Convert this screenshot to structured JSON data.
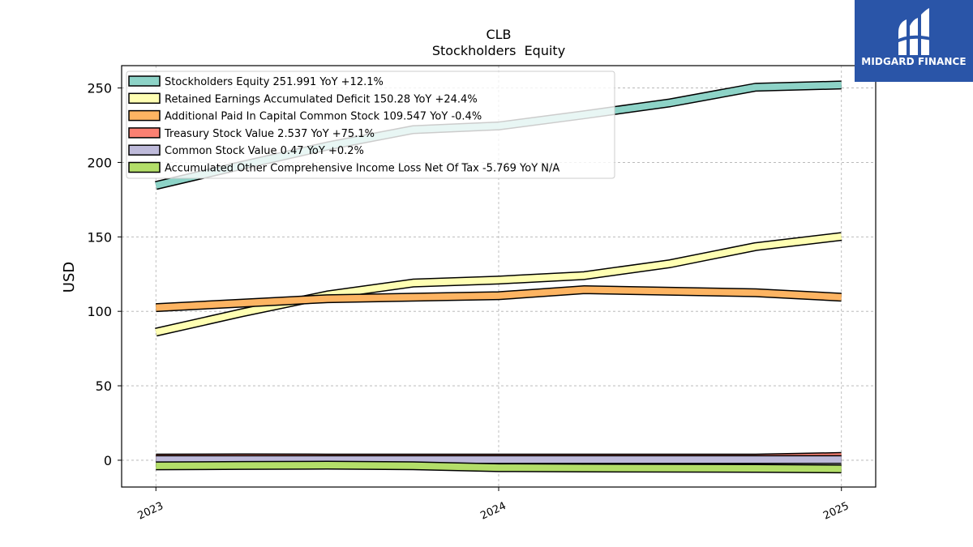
{
  "brand": {
    "name": "MIDGARD FINANCE",
    "bg_color": "#2a55a8",
    "icon": "midgard-logo-icon"
  },
  "chart_data": {
    "type": "area",
    "title": "CLB",
    "subtitle": "Stockholders  Equity",
    "ylabel": "USD",
    "xlabel": "",
    "x_ticks": [
      "2023",
      "2024",
      "2025"
    ],
    "ylim": [
      -18,
      265
    ],
    "y_ticks": [
      0,
      50,
      100,
      150,
      200,
      250
    ],
    "grid": true,
    "legend_position": "top-left",
    "x": [
      2023.0,
      2023.25,
      2023.5,
      2023.75,
      2024.0,
      2024.25,
      2024.5,
      2024.75,
      2025.0
    ],
    "series": [
      {
        "name": "Stockholders Equity  251.991 YoY +12.1%",
        "color": "#8dd3c7",
        "values": [
          184.5,
          198,
          211,
          222,
          224.5,
          232,
          240,
          250.5,
          252
        ]
      },
      {
        "name": "Retained Earnings Accumulated Deficit  150.28 YoY +24.4%",
        "color": "#ffffb3",
        "values": [
          86,
          99,
          111,
          119,
          121,
          124,
          132,
          143.5,
          150.3
        ]
      },
      {
        "name": "Additional Paid In Capital Common Stock  109.547 YoY -0.4%",
        "color": "#fdb462",
        "values": [
          102.5,
          105.5,
          108.5,
          109.5,
          110.5,
          114.5,
          113.5,
          112.5,
          109.5
        ]
      },
      {
        "name": "Treasury Stock Value  2.537 YoY +75.1%",
        "color": "#fb8072",
        "values": [
          1.5,
          1.6,
          1.5,
          1.5,
          1.5,
          1.5,
          1.5,
          1.5,
          2.5
        ]
      },
      {
        "name": "Common Stock Value  0.47 YoY +0.2%",
        "color": "#bebada",
        "values": [
          0.47,
          0.47,
          0.47,
          0.47,
          0.47,
          0.47,
          0.47,
          0.47,
          0.47
        ]
      },
      {
        "name": "Accumulated Other Comprehensive Income Loss Net Of Tax  -5.769 YoY N/A",
        "color": "#b3de69",
        "values": [
          -3.8,
          -3.5,
          -3.3,
          -3.7,
          -5,
          -5.2,
          -5.3,
          -5.5,
          -5.8
        ]
      }
    ]
  }
}
